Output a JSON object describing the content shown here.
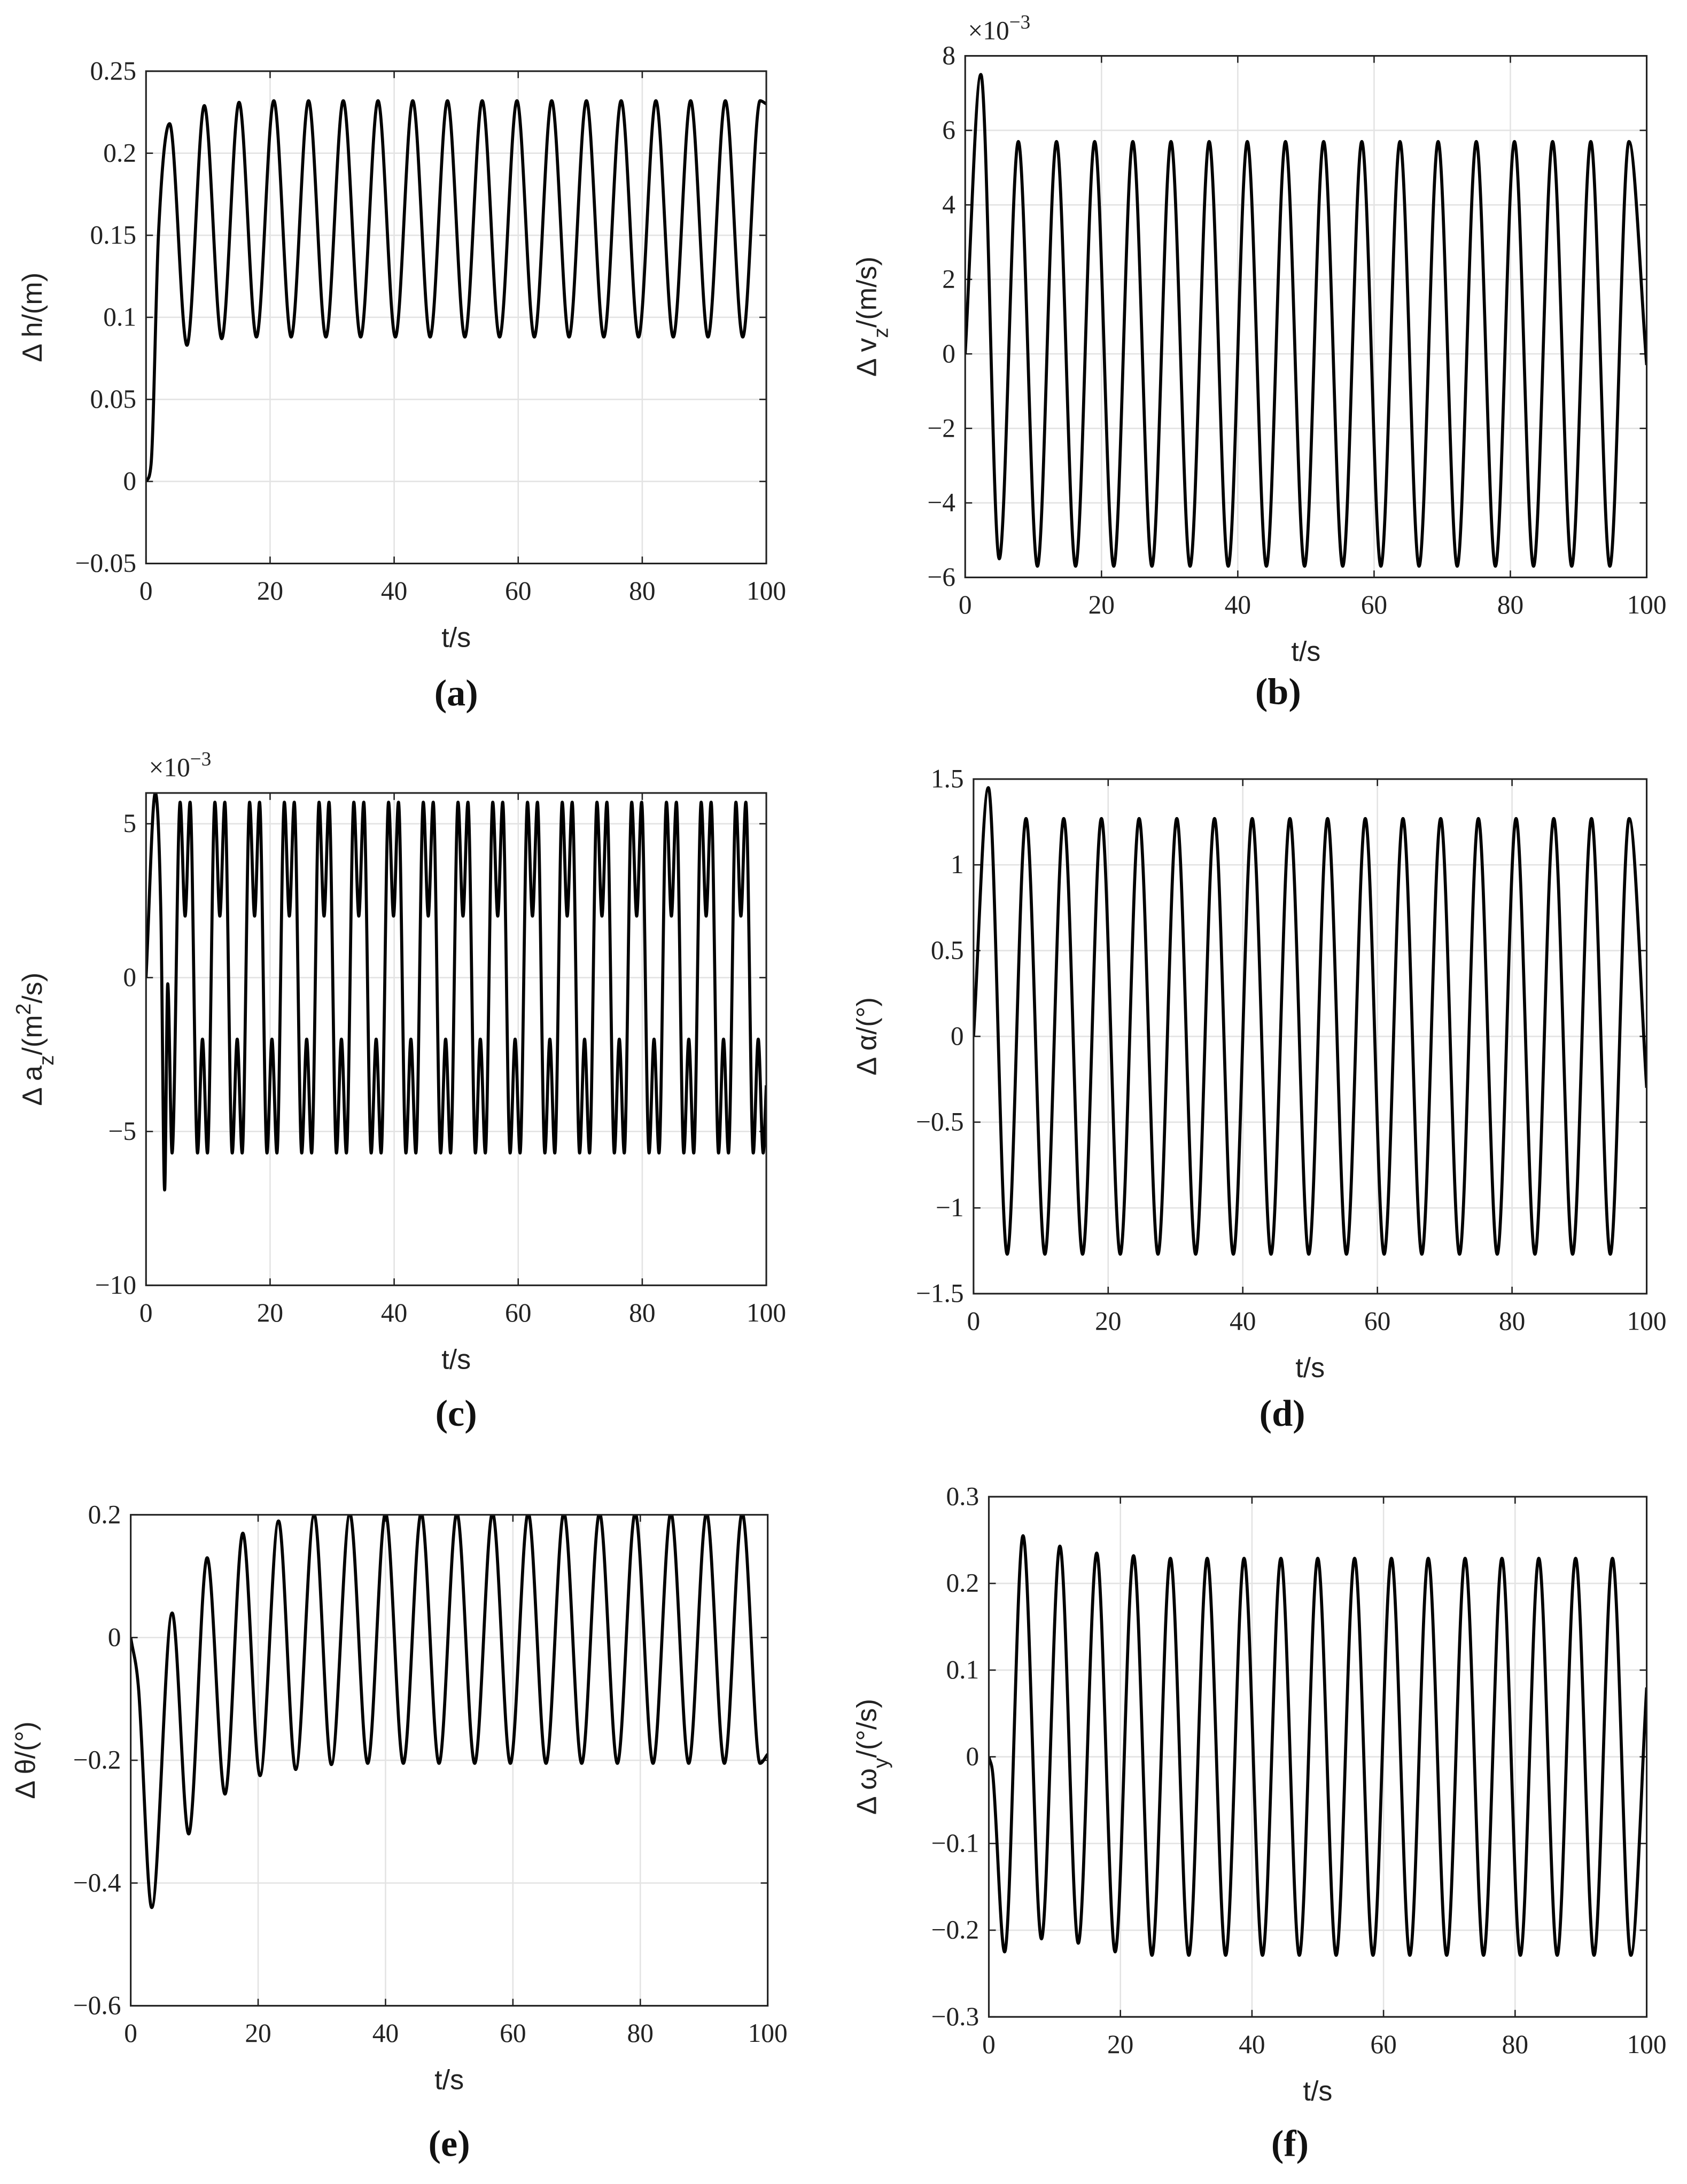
{
  "chart_data": [
    {
      "type": "line",
      "caption": "(a)",
      "xlabel": "t/s",
      "ylabel": [
        {
          "text": "Δ h/(m)"
        }
      ],
      "xlim": [
        0,
        100
      ],
      "xticks": [
        0,
        20,
        40,
        60,
        80,
        100
      ],
      "ylim": [
        -0.05,
        0.25
      ],
      "yticks": [
        {
          "value": -0.05,
          "label": "−0.05"
        },
        0,
        0.05,
        0.1,
        0.15,
        0.2,
        0.25
      ],
      "grid": true,
      "x": [
        0,
        0.8,
        2,
        3.8,
        6.6,
        9.4,
        12.2,
        15,
        17.8,
        20.6,
        23.4,
        26.2,
        29,
        31.8,
        34.6,
        37.4,
        40.2,
        43,
        45.8,
        48.6,
        51.4,
        54.2,
        57,
        59.8,
        62.6,
        65.4,
        68.2,
        71,
        73.8,
        76.6,
        79.4,
        82.2,
        85,
        87.8,
        90.6,
        93.4,
        96.2,
        99,
        100
      ],
      "series": [
        {
          "color": "#000000",
          "values": [
            0,
            0.01,
            0.15,
            0.218,
            0.083,
            0.229,
            0.087,
            0.231,
            0.088,
            0.232,
            0.088,
            0.232,
            0.088,
            0.232,
            0.088,
            0.232,
            0.088,
            0.232,
            0.088,
            0.232,
            0.088,
            0.232,
            0.088,
            0.232,
            0.088,
            0.232,
            0.088,
            0.232,
            0.088,
            0.232,
            0.088,
            0.232,
            0.088,
            0.232,
            0.088,
            0.232,
            0.088,
            0.232,
            0.23
          ]
        }
      ]
    },
    {
      "type": "line",
      "caption": "(b)",
      "xlabel": "t/s",
      "ylabel": [
        {
          "text": "Δ v"
        },
        {
          "text": "z",
          "sub": true
        },
        {
          "text": "/(m/s)"
        }
      ],
      "y_multiplier": [
        {
          "text": "×10"
        },
        {
          "text": "−3",
          "sup": true
        }
      ],
      "xlim": [
        0,
        100
      ],
      "xticks": [
        0,
        20,
        40,
        60,
        80,
        100
      ],
      "ylim": [
        -6,
        8
      ],
      "yticks": [
        {
          "value": -6,
          "label": "−6"
        },
        {
          "value": -4,
          "label": "−4"
        },
        {
          "value": -2,
          "label": "−2"
        },
        0,
        2,
        4,
        6,
        8
      ],
      "grid": true,
      "x": [
        0,
        2.3,
        5,
        7.8,
        10.6,
        13.4,
        16.2,
        19,
        21.8,
        24.6,
        27.4,
        30.2,
        33,
        35.8,
        38.6,
        41.4,
        44.2,
        47,
        49.8,
        52.6,
        55.4,
        58.2,
        61,
        63.8,
        66.6,
        69.4,
        72.2,
        75,
        77.8,
        80.6,
        83.4,
        86.2,
        89,
        91.8,
        94.6,
        97.4,
        100
      ],
      "series": [
        {
          "color": "#000000",
          "values": [
            0,
            7.5,
            -5.5,
            5.7,
            -5.7,
            5.7,
            -5.7,
            5.7,
            -5.7,
            5.7,
            -5.7,
            5.7,
            -5.7,
            5.7,
            -5.7,
            5.7,
            -5.7,
            5.7,
            -5.7,
            5.7,
            -5.7,
            5.7,
            -5.7,
            5.7,
            -5.7,
            5.7,
            -5.7,
            5.7,
            -5.7,
            5.7,
            -5.7,
            5.7,
            -5.7,
            5.7,
            -5.7,
            5.7,
            -0.3
          ]
        }
      ]
    },
    {
      "type": "line",
      "caption": "(c)",
      "xlabel": "t/s",
      "ylabel": [
        {
          "text": "Δ a"
        },
        {
          "text": "z",
          "sub": true
        },
        {
          "text": "/(m"
        },
        {
          "text": "2",
          "sup": true
        },
        {
          "text": "/s)"
        }
      ],
      "y_multiplier": [
        {
          "text": "×10"
        },
        {
          "text": "−3",
          "sup": true
        }
      ],
      "xlim": [
        0,
        100
      ],
      "xticks": [
        0,
        20,
        40,
        60,
        80,
        100
      ],
      "ylim": [
        -10,
        6
      ],
      "yticks": [
        {
          "value": -10,
          "label": "−10"
        },
        {
          "value": -5,
          "label": "−5"
        },
        0,
        5
      ],
      "grid": true,
      "x": [
        0,
        1.5,
        2.4,
        3,
        3.5,
        4.2,
        5.5,
        6.3,
        7.1,
        8.3,
        9.1,
        9.9,
        11.1,
        11.9,
        12.7,
        13.9,
        14.7,
        15.5,
        16.7,
        17.5,
        18.3,
        19.5,
        20.3,
        21.1,
        22.3,
        23.1,
        23.9,
        25.1,
        25.9,
        26.7,
        27.9,
        28.7,
        29.5,
        30.7,
        31.5,
        32.3,
        33.5,
        34.3,
        35.1,
        36.3,
        37.1,
        37.9,
        39.1,
        39.9,
        40.7,
        41.9,
        42.7,
        43.5,
        44.7,
        45.5,
        46.3,
        47.5,
        48.3,
        49.1,
        50.3,
        51.1,
        51.9,
        53.1,
        53.9,
        54.7,
        55.9,
        56.7,
        57.5,
        58.7,
        59.5,
        60.3,
        61.5,
        62.3,
        63.1,
        64.3,
        65.1,
        65.9,
        67.1,
        67.9,
        68.7,
        69.9,
        70.7,
        71.5,
        72.7,
        73.5,
        74.3,
        75.5,
        76.3,
        77.1,
        78.3,
        79.1,
        79.9,
        81.1,
        81.9,
        82.7,
        83.9,
        84.7,
        85.5,
        86.7,
        87.5,
        88.3,
        89.5,
        90.3,
        91.1,
        92.3,
        93.1,
        93.9,
        95.1,
        95.9,
        96.7,
        97.9,
        98.7,
        99.5,
        100
      ],
      "series": [
        {
          "color": "#000000",
          "values": [
            0,
            6,
            2,
            -6.9,
            -0.2,
            -5.7,
            5.7,
            2,
            5.7,
            -5.7,
            -2,
            -5.7,
            5.7,
            2,
            5.7,
            -5.7,
            -2,
            -5.7,
            5.7,
            2,
            5.7,
            -5.7,
            -2,
            -5.7,
            5.7,
            2,
            5.7,
            -5.7,
            -2,
            -5.7,
            5.7,
            2,
            5.7,
            -5.7,
            -2,
            -5.7,
            5.7,
            2,
            5.7,
            -5.7,
            -2,
            -5.7,
            5.7,
            2,
            5.7,
            -5.7,
            -2,
            -5.7,
            5.7,
            2,
            5.7,
            -5.7,
            -2,
            -5.7,
            5.7,
            2,
            5.7,
            -5.7,
            -2,
            -5.7,
            5.7,
            2,
            5.7,
            -5.7,
            -2,
            -5.7,
            5.7,
            2,
            5.7,
            -5.7,
            -2,
            -5.7,
            5.7,
            2,
            5.7,
            -5.7,
            -2,
            -5.7,
            5.7,
            2,
            5.7,
            -5.7,
            -2,
            -5.7,
            5.7,
            2,
            5.7,
            -5.7,
            -2,
            -5.7,
            5.7,
            2,
            5.7,
            -5.7,
            -2,
            -5.7,
            5.7,
            2,
            5.7,
            -5.7,
            -2,
            -5.7,
            5.7,
            2,
            5.7,
            -5.7,
            -2,
            -5.7,
            -3.5
          ]
        }
      ]
    },
    {
      "type": "line",
      "caption": "(d)",
      "xlabel": "t/s",
      "ylabel": [
        {
          "text": "Δ α/(°)"
        }
      ],
      "xlim": [
        0,
        100
      ],
      "xticks": [
        0,
        20,
        40,
        60,
        80,
        100
      ],
      "ylim": [
        -1.5,
        1.5
      ],
      "yticks": [
        {
          "value": -1.5,
          "label": "−1.5"
        },
        {
          "value": -1,
          "label": "−1"
        },
        {
          "value": -0.5,
          "label": "−0.5"
        },
        0,
        0.5,
        1,
        1.5
      ],
      "grid": true,
      "x": [
        0,
        2.2,
        5,
        7.8,
        10.6,
        13.4,
        16.2,
        19,
        21.8,
        24.6,
        27.4,
        30.2,
        33,
        35.8,
        38.6,
        41.4,
        44.2,
        47,
        49.8,
        52.6,
        55.4,
        58.2,
        61,
        63.8,
        66.6,
        69.4,
        72.2,
        75,
        77.8,
        80.6,
        83.4,
        86.2,
        89,
        91.8,
        94.6,
        97.4,
        100
      ],
      "series": [
        {
          "color": "#000000",
          "values": [
            0,
            1.45,
            -1.27,
            1.27,
            -1.27,
            1.27,
            -1.27,
            1.27,
            -1.27,
            1.27,
            -1.27,
            1.27,
            -1.27,
            1.27,
            -1.27,
            1.27,
            -1.27,
            1.27,
            -1.27,
            1.27,
            -1.27,
            1.27,
            -1.27,
            1.27,
            -1.27,
            1.27,
            -1.27,
            1.27,
            -1.27,
            1.27,
            -1.27,
            1.27,
            -1.27,
            1.27,
            -1.27,
            1.27,
            -0.3
          ]
        }
      ]
    },
    {
      "type": "line",
      "caption": "(e)",
      "xlabel": "t/s",
      "ylabel": [
        {
          "text": "Δ θ/(°)"
        }
      ],
      "xlim": [
        0,
        100
      ],
      "xticks": [
        0,
        20,
        40,
        60,
        80,
        100
      ],
      "ylim": [
        -0.6,
        0.2
      ],
      "yticks": [
        {
          "value": -0.6,
          "label": "−0.6"
        },
        {
          "value": -0.4,
          "label": "−0.4"
        },
        {
          "value": -0.2,
          "label": "−0.2"
        },
        0,
        0.2
      ],
      "grid": true,
      "x": [
        0,
        1.2,
        3.3,
        6.5,
        9.1,
        12,
        14.8,
        17.6,
        20.3,
        23.2,
        25.9,
        28.8,
        31.5,
        34.4,
        37.2,
        40,
        42.8,
        45.6,
        48.4,
        51.2,
        54,
        56.8,
        59.6,
        62.4,
        65.2,
        68,
        70.8,
        73.6,
        76.4,
        79.2,
        82,
        84.8,
        87.6,
        90.4,
        93.2,
        96,
        98.8,
        100
      ],
      "series": [
        {
          "color": "#000000",
          "values": [
            0,
            -0.08,
            -0.44,
            0.04,
            -0.32,
            0.13,
            -0.255,
            0.17,
            -0.225,
            0.19,
            -0.215,
            0.2,
            -0.207,
            0.202,
            -0.205,
            0.203,
            -0.205,
            0.203,
            -0.205,
            0.203,
            -0.205,
            0.203,
            -0.205,
            0.203,
            -0.205,
            0.203,
            -0.205,
            0.203,
            -0.205,
            0.203,
            -0.205,
            0.203,
            -0.205,
            0.203,
            -0.205,
            0.203,
            -0.205,
            -0.19
          ]
        }
      ]
    },
    {
      "type": "line",
      "caption": "(f)",
      "xlabel": "t/s",
      "ylabel": [
        {
          "text": "Δ ω"
        },
        {
          "text": "y",
          "sub": true
        },
        {
          "text": "/(°/s)"
        }
      ],
      "xlim": [
        0,
        100
      ],
      "xticks": [
        0,
        20,
        40,
        60,
        80,
        100
      ],
      "ylim": [
        -0.3,
        0.3
      ],
      "yticks": [
        {
          "value": -0.3,
          "label": "−0.3"
        },
        {
          "value": -0.2,
          "label": "−0.2"
        },
        {
          "value": -0.1,
          "label": "−0.1"
        },
        0,
        0.1,
        0.2,
        0.3
      ],
      "grid": true,
      "x": [
        0,
        0.6,
        2.4,
        5.2,
        8,
        10.8,
        13.6,
        16.4,
        19.2,
        22,
        24.8,
        27.6,
        30.4,
        33.2,
        36,
        38.8,
        41.6,
        44.4,
        47.2,
        50,
        52.8,
        55.6,
        58.4,
        61.2,
        64,
        66.8,
        69.6,
        72.4,
        75.2,
        78,
        80.8,
        83.6,
        86.4,
        89.2,
        92,
        94.8,
        97.6,
        100
      ],
      "series": [
        {
          "color": "#000000",
          "values": [
            0,
            -0.02,
            -0.225,
            0.255,
            -0.21,
            0.243,
            -0.215,
            0.235,
            -0.225,
            0.232,
            -0.229,
            0.229,
            -0.229,
            0.229,
            -0.229,
            0.229,
            -0.229,
            0.229,
            -0.229,
            0.229,
            -0.229,
            0.229,
            -0.229,
            0.229,
            -0.229,
            0.229,
            -0.229,
            0.229,
            -0.229,
            0.229,
            -0.229,
            0.229,
            -0.229,
            0.229,
            -0.229,
            0.229,
            -0.229,
            0.08
          ]
        }
      ]
    }
  ]
}
